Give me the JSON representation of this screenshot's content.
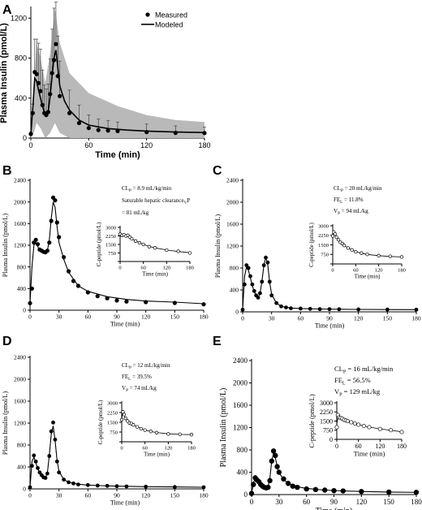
{
  "chart_data": [
    {
      "panel": "A",
      "type": "line",
      "ylabel": "Plasma Insulin (pmol/L)",
      "xlabel": "Time (min)",
      "xlim": [
        0,
        180
      ],
      "ylim": [
        0,
        1300
      ],
      "xticks": [
        0,
        60,
        120,
        180
      ],
      "yticks": [
        0,
        400,
        800,
        1200
      ],
      "legend": {
        "position": "top-right",
        "measured": "Measured",
        "modeled": "Modeled"
      },
      "grid": false,
      "measured": {
        "x": [
          0,
          2,
          4,
          6,
          8,
          10,
          12,
          14,
          16,
          18,
          20,
          22,
          24,
          26,
          28,
          30,
          40,
          50,
          60,
          70,
          80,
          90,
          120,
          150,
          180
        ],
        "y": [
          40,
          250,
          660,
          640,
          550,
          470,
          330,
          250,
          230,
          260,
          440,
          650,
          780,
          940,
          620,
          420,
          250,
          150,
          100,
          80,
          75,
          70,
          60,
          52,
          50
        ],
        "err": [
          20,
          90,
          330,
          350,
          400,
          420,
          350,
          280,
          260,
          280,
          350,
          440,
          520,
          420,
          400,
          350,
          230,
          180,
          130,
          110,
          100,
          90,
          80,
          70,
          60
        ]
      },
      "modeled": {
        "x": [
          0,
          2,
          4,
          6,
          8,
          10,
          12,
          14,
          16,
          18,
          20,
          22,
          24,
          26,
          28,
          30,
          35,
          40,
          50,
          60,
          80,
          100,
          120,
          150,
          180
        ],
        "y": [
          40,
          300,
          600,
          570,
          480,
          400,
          320,
          260,
          240,
          260,
          420,
          620,
          800,
          880,
          700,
          520,
          370,
          280,
          180,
          130,
          95,
          80,
          70,
          60,
          55
        ]
      },
      "band": {
        "x": [
          0,
          3,
          6,
          10,
          15,
          20,
          25,
          30,
          40,
          60,
          90,
          120,
          150,
          180
        ],
        "lo": [
          0,
          50,
          150,
          100,
          0,
          50,
          150,
          50,
          0,
          0,
          0,
          0,
          0,
          0
        ],
        "hi": [
          80,
          500,
          950,
          800,
          550,
          850,
          1300,
          950,
          650,
          450,
          320,
          230,
          180,
          160
        ]
      }
    },
    {
      "panel": "B",
      "type": "scatter",
      "ylabel": "Plasma Insulin (pmol/L)",
      "xlabel": "Time (min)",
      "xlim": [
        0,
        180
      ],
      "ylim": [
        0,
        2400
      ],
      "xticks": [
        0,
        30,
        60,
        90,
        120,
        150,
        180
      ],
      "yticks": [
        0,
        400,
        800,
        1200,
        1600,
        2000,
        2400
      ],
      "params": [
        "CL",
        "P",
        " = 8.9 mL/kg/min",
        "Saturable hepatic clearance",
        "V",
        "P",
        " = 81 mL/kg"
      ],
      "measured": {
        "x": [
          0,
          2,
          4,
          6,
          8,
          10,
          12,
          14,
          16,
          18,
          20,
          22,
          24,
          26,
          28,
          30,
          35,
          40,
          45,
          50,
          60,
          70,
          80,
          90,
          100,
          120,
          150,
          180
        ],
        "y": [
          130,
          400,
          1250,
          1300,
          1220,
          1120,
          1100,
          1080,
          1070,
          1100,
          1250,
          1650,
          2080,
          2030,
          1620,
          1350,
          980,
          720,
          540,
          450,
          330,
          260,
          220,
          180,
          160,
          150,
          135,
          110
        ]
      },
      "modeled": {
        "x": [
          0,
          2,
          4,
          6,
          8,
          10,
          12,
          14,
          16,
          18,
          20,
          22,
          24,
          26,
          28,
          30,
          35,
          40,
          50,
          60,
          80,
          100,
          120,
          150,
          180
        ],
        "y": [
          130,
          800,
          1200,
          1250,
          1180,
          1100,
          1080,
          1060,
          1060,
          1100,
          1300,
          1700,
          2000,
          1900,
          1550,
          1250,
          940,
          700,
          450,
          350,
          250,
          200,
          170,
          150,
          120
        ]
      },
      "inset": {
        "ylabel": "C-peptide (pmol/L)",
        "xlabel": "Time (min)",
        "xlim": [
          0,
          180
        ],
        "ylim": [
          0,
          3000
        ],
        "xticks": [
          0,
          60,
          120,
          180
        ],
        "yticks": [
          0,
          750,
          1500,
          2250,
          3000
        ],
        "yticklabels": [
          "",
          "750",
          "1500",
          "2250",
          "3000"
        ],
        "x": [
          0,
          5,
          10,
          15,
          20,
          25,
          30,
          40,
          50,
          60,
          75,
          90,
          120,
          150,
          180
        ],
        "y": [
          2400,
          2300,
          2350,
          2250,
          2300,
          2150,
          2000,
          1800,
          1650,
          1500,
          1300,
          1200,
          1000,
          900,
          750
        ],
        "curve_y": [
          2400,
          2350,
          2300,
          2250,
          2200,
          2120,
          2000,
          1800,
          1650,
          1500,
          1320,
          1200,
          1010,
          880,
          770
        ]
      }
    },
    {
      "panel": "C",
      "type": "scatter",
      "ylabel": "Plasma Insulin (pmol/L)",
      "xlabel": "Time (min)",
      "xlim": [
        0,
        180
      ],
      "ylim": [
        0,
        2400
      ],
      "xticks": [
        0,
        30,
        60,
        90,
        120,
        150,
        180
      ],
      "yticks": [
        0,
        400,
        800,
        1200,
        1600,
        2000,
        2400
      ],
      "params": [
        "CL",
        "P",
        " = 20 mL/kg/min",
        "FE",
        "L",
        " = 11.8%",
        "V",
        "P",
        " = 94 mL/kg"
      ],
      "measured": {
        "x": [
          0,
          2,
          4,
          6,
          8,
          10,
          12,
          14,
          16,
          18,
          20,
          22,
          24,
          26,
          28,
          30,
          35,
          40,
          45,
          50,
          60,
          70,
          80,
          90,
          100,
          120,
          150,
          180
        ],
        "y": [
          40,
          500,
          850,
          800,
          650,
          500,
          380,
          300,
          260,
          340,
          550,
          850,
          990,
          900,
          550,
          300,
          160,
          100,
          80,
          65,
          60,
          55,
          50,
          50,
          48,
          45,
          42,
          40
        ]
      },
      "modeled": {
        "x": [
          0,
          2,
          4,
          6,
          8,
          10,
          12,
          14,
          16,
          18,
          20,
          22,
          24,
          26,
          28,
          30,
          35,
          40,
          50,
          60,
          80,
          100,
          120,
          150,
          180
        ],
        "y": [
          40,
          650,
          820,
          760,
          620,
          480,
          370,
          300,
          270,
          330,
          560,
          850,
          1000,
          860,
          540,
          320,
          160,
          100,
          70,
          60,
          52,
          48,
          45,
          42,
          40
        ]
      },
      "inset": {
        "ylabel": "C-peptide (pmol/L)",
        "xlabel": "Time (min)",
        "xlim": [
          0,
          180
        ],
        "ylim": [
          0,
          3000
        ],
        "xticks": [
          0,
          60,
          120,
          180
        ],
        "yticks": [
          0,
          750,
          1500,
          2250,
          3000
        ],
        "yticklabels": [
          "",
          "750",
          "1500",
          "2250",
          "3000"
        ],
        "x": [
          0,
          3,
          6,
          10,
          15,
          20,
          25,
          30,
          40,
          50,
          60,
          75,
          90,
          120,
          150,
          180
        ],
        "y": [
          2200,
          2500,
          2350,
          2100,
          1900,
          1700,
          1600,
          1450,
          1250,
          1100,
          950,
          850,
          750,
          650,
          600,
          550
        ],
        "curve_y": [
          2300,
          2400,
          2300,
          2100,
          1900,
          1720,
          1580,
          1450,
          1250,
          1090,
          960,
          840,
          750,
          650,
          590,
          550
        ]
      }
    },
    {
      "panel": "D",
      "type": "scatter",
      "ylabel": "Plasma Insulin (pmol/L)",
      "xlabel": "Time (min)",
      "xlim": [
        0,
        180
      ],
      "ylim": [
        0,
        2400
      ],
      "xticks": [
        0,
        30,
        60,
        90,
        120,
        150,
        180
      ],
      "yticks": [
        0,
        400,
        800,
        1200,
        1600,
        2000,
        2400
      ],
      "params": [
        "CL",
        "P",
        " = 12 mL/kg/min",
        "FE",
        "L",
        " = 39.5%",
        "V",
        "P",
        " = 74 mL/kg"
      ],
      "measured": {
        "x": [
          0,
          2,
          4,
          6,
          8,
          10,
          12,
          14,
          16,
          18,
          20,
          22,
          24,
          26,
          28,
          30,
          35,
          40,
          45,
          50,
          60,
          70,
          80,
          90,
          100,
          120,
          150,
          180
        ],
        "y": [
          30,
          420,
          610,
          500,
          380,
          300,
          250,
          210,
          200,
          280,
          600,
          1050,
          1210,
          900,
          500,
          300,
          170,
          120,
          100,
          80,
          70,
          60,
          55,
          50,
          45,
          40,
          35,
          30
        ]
      },
      "modeled": {
        "x": [
          0,
          2,
          4,
          6,
          8,
          10,
          12,
          14,
          16,
          18,
          20,
          22,
          24,
          26,
          28,
          30,
          35,
          40,
          50,
          60,
          80,
          100,
          120,
          150,
          180
        ],
        "y": [
          30,
          500,
          580,
          480,
          370,
          290,
          240,
          210,
          210,
          290,
          620,
          1000,
          1150,
          880,
          520,
          320,
          170,
          120,
          85,
          70,
          55,
          48,
          40,
          35,
          30
        ]
      },
      "inset": {
        "ylabel": "C-peptide (pmol/L)",
        "xlabel": "Time (min)",
        "xlim": [
          0,
          180
        ],
        "ylim": [
          0,
          3000
        ],
        "xticks": [
          0,
          60,
          120,
          180
        ],
        "yticks": [
          0,
          750,
          1500,
          2250,
          3000
        ],
        "yticklabels": [
          "",
          "750",
          "1500",
          "2250",
          "3000"
        ],
        "x": [
          0,
          3,
          6,
          10,
          15,
          20,
          25,
          30,
          40,
          50,
          60,
          75,
          90,
          120,
          150,
          180
        ],
        "y": [
          1700,
          2300,
          2100,
          1800,
          1600,
          1450,
          1400,
          1300,
          1150,
          1000,
          900,
          800,
          700,
          600,
          580,
          550
        ],
        "curve_y": [
          1800,
          2200,
          2050,
          1820,
          1620,
          1480,
          1380,
          1300,
          1150,
          1010,
          900,
          790,
          710,
          610,
          570,
          550
        ]
      }
    },
    {
      "panel": "E",
      "type": "scatter",
      "ylabel": "Plasma Insulin (pmol/L)",
      "xlabel": "Time (min)",
      "xlim": [
        0,
        180
      ],
      "ylim": [
        0,
        2400
      ],
      "xticks": [
        0,
        30,
        60,
        90,
        120,
        150,
        180
      ],
      "yticks": [
        0,
        400,
        800,
        1200,
        1600,
        2000,
        2400
      ],
      "params": [
        "CL",
        "P",
        " = 16 mL/kg/min",
        "FE",
        "L",
        " = 56.5%",
        "V",
        "P",
        " = 129 mL/kg"
      ],
      "measured": {
        "x": [
          0,
          2,
          4,
          6,
          8,
          10,
          12,
          14,
          16,
          18,
          20,
          22,
          24,
          26,
          28,
          30,
          35,
          40,
          45,
          50,
          60,
          70,
          80,
          90,
          100,
          120,
          150,
          180
        ],
        "y": [
          20,
          180,
          300,
          260,
          230,
          180,
          150,
          130,
          120,
          130,
          250,
          600,
          780,
          700,
          500,
          400,
          280,
          200,
          150,
          130,
          100,
          90,
          80,
          70,
          65,
          55,
          45,
          40
        ]
      },
      "modeled": {
        "x": [
          0,
          2,
          4,
          6,
          8,
          10,
          12,
          14,
          16,
          18,
          20,
          22,
          24,
          26,
          28,
          30,
          35,
          40,
          50,
          60,
          80,
          100,
          120,
          150,
          180
        ],
        "y": [
          20,
          220,
          280,
          250,
          210,
          170,
          140,
          125,
          120,
          140,
          300,
          600,
          740,
          660,
          500,
          390,
          270,
          200,
          140,
          110,
          80,
          65,
          55,
          45,
          40
        ]
      },
      "inset": {
        "ylabel": "C-peptide (pmol/L)",
        "xlabel": "Time (min)",
        "xlim": [
          0,
          180
        ],
        "ylim": [
          0,
          3000
        ],
        "xticks": [
          0,
          60,
          120,
          180
        ],
        "yticks": [
          0,
          750,
          1500,
          2250,
          3000
        ],
        "yticklabels": [
          "0",
          "750",
          "1500",
          "2250",
          "3000"
        ],
        "x": [
          0,
          3,
          6,
          10,
          15,
          20,
          25,
          30,
          40,
          50,
          60,
          75,
          90,
          120,
          150,
          180
        ],
        "y": [
          1000,
          2000,
          1800,
          1750,
          1700,
          1600,
          1550,
          1500,
          1400,
          1300,
          1200,
          1100,
          1000,
          850,
          750,
          600
        ],
        "curve_y": [
          1200,
          1800,
          1780,
          1720,
          1650,
          1600,
          1540,
          1480,
          1390,
          1300,
          1210,
          1100,
          1010,
          860,
          740,
          620
        ]
      }
    }
  ]
}
